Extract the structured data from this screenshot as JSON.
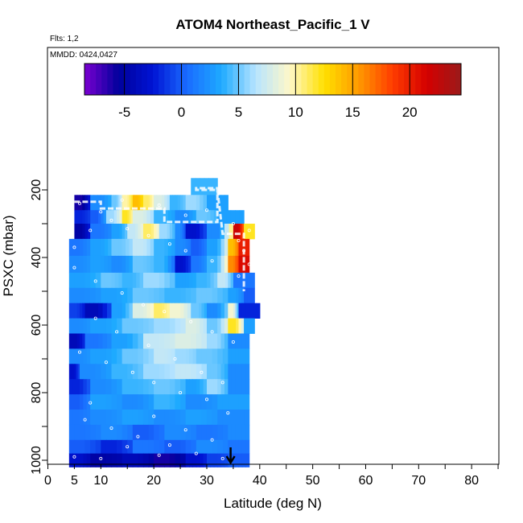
{
  "chart_data": {
    "type": "heatmap",
    "title": "ATOM4 Northeast_Pacific_1 V",
    "annotations": [
      "Flts: 1,2",
      "MMDD: 0424,0427"
    ],
    "xlabel": "Latitude (deg N)",
    "ylabel": "PSXC (mbar)",
    "xlim": [
      0,
      85
    ],
    "ylim": [
      1020,
      120
    ],
    "y_reversed": true,
    "x_ticks": [
      0,
      5,
      10,
      20,
      30,
      40,
      50,
      60,
      70,
      80
    ],
    "x_ticks_unlabeled": [
      15,
      25,
      35,
      45,
      55,
      65,
      75,
      85
    ],
    "y_ticks": [
      200,
      400,
      600,
      800,
      1000
    ],
    "y_ticks_unlabeled": [
      300,
      500,
      700,
      900
    ],
    "colorbar": {
      "range": [
        -8.5,
        24.5
      ],
      "ticks": [
        -5,
        0,
        5,
        10,
        15,
        20
      ],
      "colors": [
        "#7a00d0",
        "#00009c",
        "#0014d4",
        "#1a6cff",
        "#1eaaff",
        "#b7e4ff",
        "#fff8c8",
        "#ffe000",
        "#ff9a00",
        "#ff3c00",
        "#d40000",
        "#9a1a1a"
      ]
    },
    "grid": false,
    "marker": {
      "latitude": 34.5,
      "pressure": 1000
    },
    "layers": [
      {
        "p_top": 165,
        "p_bot": 215,
        "segments": [
          [
            27,
            32,
            4
          ]
        ]
      },
      {
        "p_top": 215,
        "p_bot": 260,
        "segments": [
          [
            5,
            8,
            -6
          ],
          [
            8,
            12,
            2
          ],
          [
            12,
            14,
            5
          ],
          [
            14,
            16,
            10
          ],
          [
            16,
            18,
            14
          ],
          [
            18,
            20,
            11
          ],
          [
            20,
            23,
            8
          ],
          [
            23,
            26,
            4
          ],
          [
            26,
            30,
            6
          ],
          [
            30,
            34,
            3
          ]
        ]
      },
      {
        "p_top": 260,
        "p_bot": 300,
        "segments": [
          [
            5,
            8,
            -2
          ],
          [
            8,
            11,
            0
          ],
          [
            11,
            14,
            6
          ],
          [
            14,
            16,
            12
          ],
          [
            16,
            20,
            8
          ],
          [
            20,
            24,
            4
          ],
          [
            24,
            28,
            2
          ],
          [
            28,
            32,
            5
          ],
          [
            32,
            37,
            3
          ]
        ]
      },
      {
        "p_top": 300,
        "p_bot": 345,
        "segments": [
          [
            5,
            8,
            -5
          ],
          [
            8,
            12,
            1
          ],
          [
            12,
            15,
            3
          ],
          [
            15,
            18,
            7
          ],
          [
            18,
            21,
            11
          ],
          [
            21,
            24,
            6
          ],
          [
            24,
            26,
            2
          ],
          [
            26,
            30,
            -3
          ],
          [
            30,
            35,
            2
          ],
          [
            35,
            37,
            22
          ],
          [
            37,
            39,
            12
          ]
        ]
      },
      {
        "p_top": 345,
        "p_bot": 395,
        "segments": [
          [
            4,
            8,
            1
          ],
          [
            8,
            12,
            3
          ],
          [
            12,
            16,
            5
          ],
          [
            16,
            20,
            7
          ],
          [
            20,
            24,
            4
          ],
          [
            24,
            27,
            2
          ],
          [
            27,
            30,
            0
          ],
          [
            30,
            34,
            3
          ],
          [
            34,
            36,
            14
          ],
          [
            36,
            38,
            20
          ]
        ]
      },
      {
        "p_top": 395,
        "p_bot": 445,
        "segments": [
          [
            4,
            8,
            2
          ],
          [
            8,
            12,
            3
          ],
          [
            12,
            16,
            2
          ],
          [
            16,
            20,
            5
          ],
          [
            20,
            24,
            4
          ],
          [
            24,
            27,
            -3
          ],
          [
            27,
            30,
            1
          ],
          [
            30,
            34,
            4
          ],
          [
            34,
            36,
            16
          ],
          [
            36,
            38,
            21
          ]
        ]
      },
      {
        "p_top": 445,
        "p_bot": 490,
        "segments": [
          [
            4,
            10,
            3
          ],
          [
            10,
            14,
            5
          ],
          [
            14,
            18,
            4
          ],
          [
            18,
            24,
            6
          ],
          [
            24,
            28,
            3
          ],
          [
            28,
            32,
            4
          ],
          [
            32,
            35,
            7
          ],
          [
            35,
            39,
            1
          ]
        ]
      },
      {
        "p_top": 490,
        "p_bot": 535,
        "segments": [
          [
            4,
            10,
            2
          ],
          [
            10,
            16,
            3
          ],
          [
            16,
            22,
            5
          ],
          [
            22,
            28,
            4
          ],
          [
            28,
            34,
            5
          ],
          [
            34,
            37,
            3
          ],
          [
            37,
            39,
            0
          ]
        ]
      },
      {
        "p_top": 535,
        "p_bot": 580,
        "segments": [
          [
            4,
            7,
            -1
          ],
          [
            7,
            12,
            -4
          ],
          [
            12,
            16,
            3
          ],
          [
            16,
            20,
            8
          ],
          [
            20,
            23,
            11
          ],
          [
            23,
            27,
            9
          ],
          [
            27,
            30,
            5
          ],
          [
            30,
            34,
            2
          ],
          [
            34,
            36,
            9
          ],
          [
            36,
            40,
            -2
          ]
        ]
      },
      {
        "p_top": 580,
        "p_bot": 625,
        "segments": [
          [
            4,
            8,
            2
          ],
          [
            8,
            14,
            3
          ],
          [
            14,
            20,
            5
          ],
          [
            20,
            26,
            6
          ],
          [
            26,
            30,
            8
          ],
          [
            30,
            34,
            5
          ],
          [
            34,
            37,
            12
          ],
          [
            37,
            39,
            3
          ]
        ]
      },
      {
        "p_top": 625,
        "p_bot": 670,
        "segments": [
          [
            4,
            7,
            -4
          ],
          [
            7,
            12,
            1
          ],
          [
            12,
            18,
            3
          ],
          [
            18,
            24,
            7
          ],
          [
            24,
            30,
            8
          ],
          [
            30,
            34,
            6
          ],
          [
            34,
            38,
            2
          ]
        ]
      },
      {
        "p_top": 670,
        "p_bot": 715,
        "segments": [
          [
            4,
            8,
            2
          ],
          [
            8,
            14,
            3
          ],
          [
            14,
            20,
            5
          ],
          [
            20,
            24,
            7
          ],
          [
            24,
            28,
            6
          ],
          [
            28,
            34,
            5
          ],
          [
            34,
            38,
            3
          ]
        ]
      },
      {
        "p_top": 715,
        "p_bot": 760,
        "segments": [
          [
            4,
            6,
            -3
          ],
          [
            6,
            12,
            2
          ],
          [
            12,
            18,
            4
          ],
          [
            18,
            24,
            6
          ],
          [
            24,
            30,
            7
          ],
          [
            30,
            34,
            5
          ],
          [
            34,
            38,
            2
          ]
        ]
      },
      {
        "p_top": 760,
        "p_bot": 805,
        "segments": [
          [
            4,
            8,
            -2
          ],
          [
            8,
            14,
            2
          ],
          [
            14,
            20,
            4
          ],
          [
            20,
            26,
            5
          ],
          [
            26,
            30,
            3
          ],
          [
            30,
            34,
            6
          ],
          [
            34,
            38,
            2
          ]
        ]
      },
      {
        "p_top": 805,
        "p_bot": 850,
        "segments": [
          [
            4,
            8,
            0
          ],
          [
            8,
            14,
            3
          ],
          [
            14,
            20,
            2
          ],
          [
            20,
            26,
            4
          ],
          [
            26,
            32,
            2
          ],
          [
            32,
            38,
            3
          ]
        ]
      },
      {
        "p_top": 850,
        "p_bot": 895,
        "segments": [
          [
            4,
            8,
            1
          ],
          [
            8,
            14,
            2
          ],
          [
            14,
            20,
            3
          ],
          [
            20,
            26,
            2
          ],
          [
            26,
            32,
            3
          ],
          [
            32,
            38,
            2
          ]
        ]
      },
      {
        "p_top": 895,
        "p_bot": 940,
        "segments": [
          [
            4,
            10,
            1
          ],
          [
            10,
            16,
            2
          ],
          [
            16,
            22,
            0
          ],
          [
            22,
            28,
            2
          ],
          [
            28,
            34,
            1
          ],
          [
            34,
            38,
            2
          ]
        ]
      },
      {
        "p_top": 940,
        "p_bot": 980,
        "segments": [
          [
            4,
            10,
            0
          ],
          [
            10,
            16,
            -2
          ],
          [
            16,
            22,
            1
          ],
          [
            22,
            28,
            0
          ],
          [
            28,
            34,
            2
          ],
          [
            34,
            38,
            1
          ]
        ]
      },
      {
        "p_top": 980,
        "p_bot": 1020,
        "segments": [
          [
            4,
            8,
            -3
          ],
          [
            8,
            14,
            -5
          ],
          [
            14,
            20,
            -4
          ],
          [
            20,
            26,
            -6
          ],
          [
            26,
            30,
            -3
          ],
          [
            30,
            34,
            -1
          ],
          [
            34,
            38,
            0
          ]
        ]
      }
    ],
    "flight_track": [
      [
        5,
        235
      ],
      [
        10,
        235
      ],
      [
        10,
        255
      ],
      [
        22,
        255
      ],
      [
        22,
        295
      ],
      [
        32,
        295
      ],
      [
        32,
        195
      ],
      [
        28,
        195
      ],
      [
        28,
        200
      ],
      [
        32,
        200
      ],
      [
        33,
        330
      ],
      [
        37,
        330
      ],
      [
        37,
        500
      ]
    ],
    "sample_points": [
      [
        6,
        240
      ],
      [
        10,
        265
      ],
      [
        12,
        290
      ],
      [
        15,
        315
      ],
      [
        19,
        335
      ],
      [
        23,
        360
      ],
      [
        26,
        380
      ],
      [
        31,
        410
      ],
      [
        5,
        430
      ],
      [
        9,
        470
      ],
      [
        14,
        505
      ],
      [
        18,
        540
      ],
      [
        22,
        560
      ],
      [
        27,
        590
      ],
      [
        31,
        620
      ],
      [
        35,
        650
      ],
      [
        6,
        680
      ],
      [
        11,
        710
      ],
      [
        16,
        740
      ],
      [
        20,
        770
      ],
      [
        25,
        800
      ],
      [
        30,
        820
      ],
      [
        34,
        860
      ],
      [
        7,
        880
      ],
      [
        12,
        905
      ],
      [
        17,
        930
      ],
      [
        23,
        955
      ],
      [
        28,
        980
      ],
      [
        33,
        995
      ],
      [
        10,
        995
      ],
      [
        5,
        990
      ],
      [
        36,
        350
      ],
      [
        37,
        380
      ],
      [
        38,
        420
      ],
      [
        36,
        455
      ],
      [
        38,
        320
      ],
      [
        35,
        300
      ],
      [
        30,
        260
      ],
      [
        26,
        275
      ],
      [
        21,
        245
      ],
      [
        14,
        230
      ],
      [
        8,
        320
      ],
      [
        5,
        370
      ],
      [
        9,
        580
      ],
      [
        13,
        620
      ],
      [
        19,
        660
      ],
      [
        24,
        700
      ],
      [
        29,
        740
      ],
      [
        33,
        770
      ],
      [
        8,
        830
      ],
      [
        20,
        870
      ],
      [
        26,
        910
      ],
      [
        31,
        940
      ],
      [
        15,
        960
      ],
      [
        21,
        985
      ]
    ]
  }
}
